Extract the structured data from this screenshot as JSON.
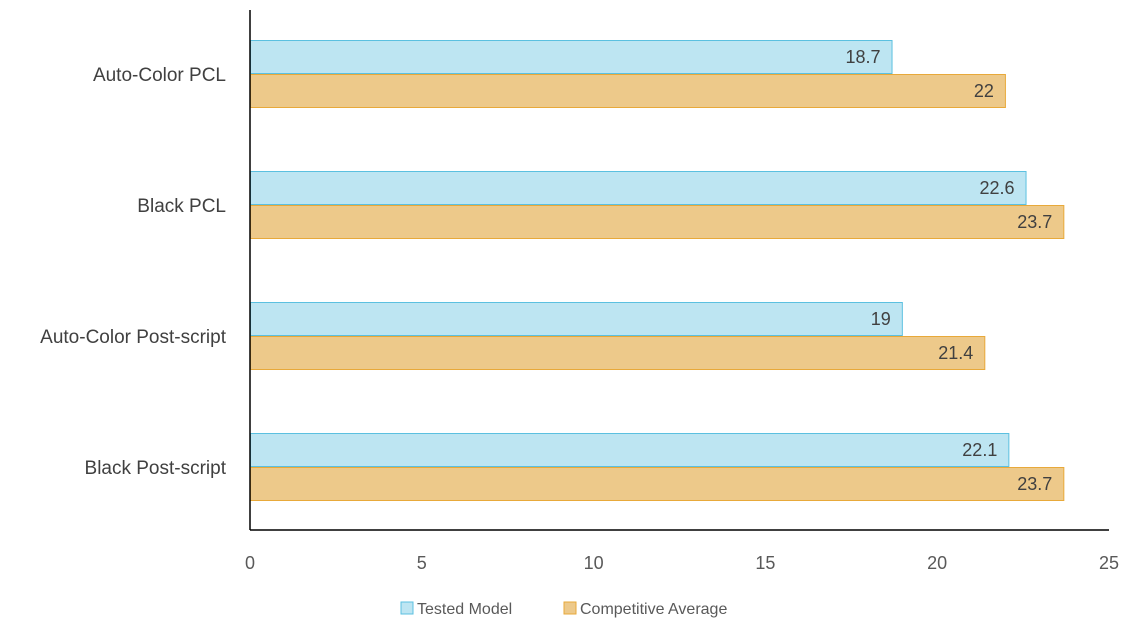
{
  "chart_data": {
    "type": "bar",
    "orientation": "horizontal",
    "categories": [
      "Auto-Color PCL",
      "Black PCL",
      "Auto-Color Post-script",
      "Black Post-script"
    ],
    "series": [
      {
        "name": "Tested Model",
        "values": [
          18.7,
          22.6,
          19,
          22.1
        ],
        "color": "#BDE5F2",
        "border": "#5BC0E0"
      },
      {
        "name": "Competitive Average",
        "values": [
          22,
          23.7,
          21.4,
          23.7
        ],
        "color": "#EDC98A",
        "border": "#E8A93A"
      }
    ],
    "xlim": [
      0,
      25
    ],
    "xticks": [
      0,
      5,
      10,
      15,
      20,
      25
    ],
    "title": "",
    "xlabel": "",
    "ylabel": "",
    "grid": false,
    "legend_position": "bottom"
  }
}
